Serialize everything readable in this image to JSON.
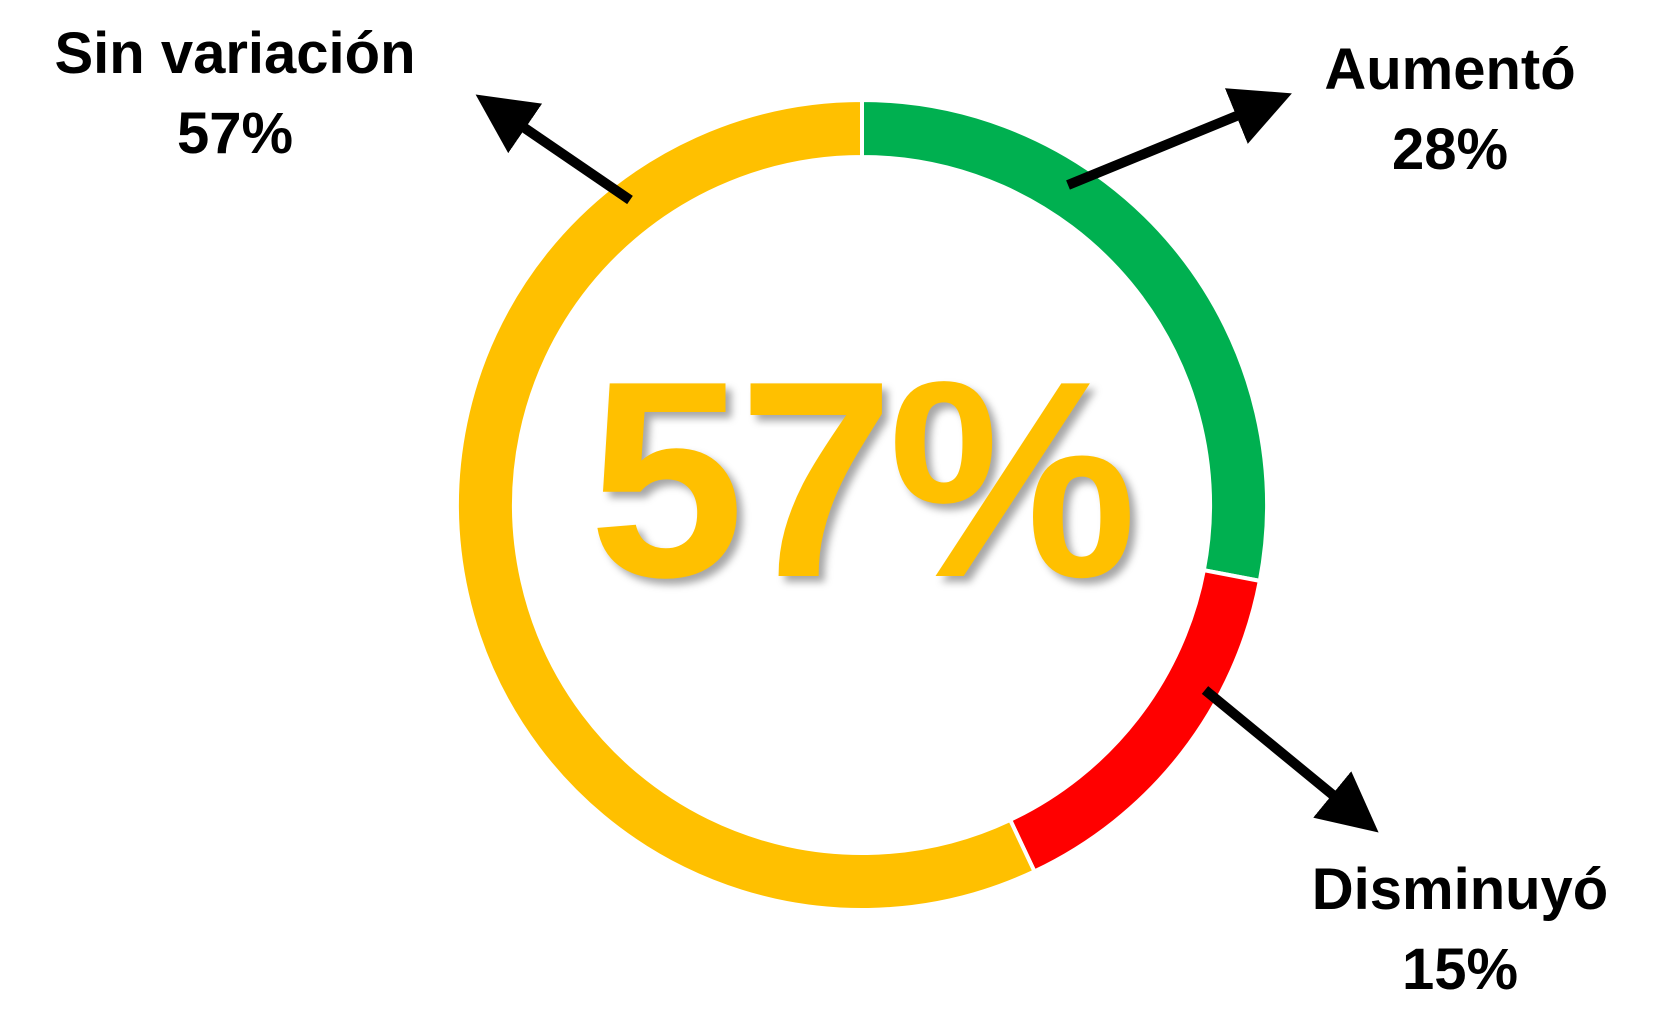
{
  "chart_data": {
    "type": "pie",
    "style": "donut",
    "center_label": "57%",
    "center_label_color": "#FFC000",
    "slices": [
      {
        "name": "Aumentó",
        "value": 28,
        "label": "28%",
        "color": "#00B050"
      },
      {
        "name": "Disminuyó",
        "value": 15,
        "label": "15%",
        "color": "#FF0000"
      },
      {
        "name": "Sin variación",
        "value": 57,
        "label": "57%",
        "color": "#FFC000"
      }
    ],
    "start_angle_deg": 0,
    "direction": "clockwise",
    "legend": "none",
    "annotations": "arrow callouts"
  }
}
